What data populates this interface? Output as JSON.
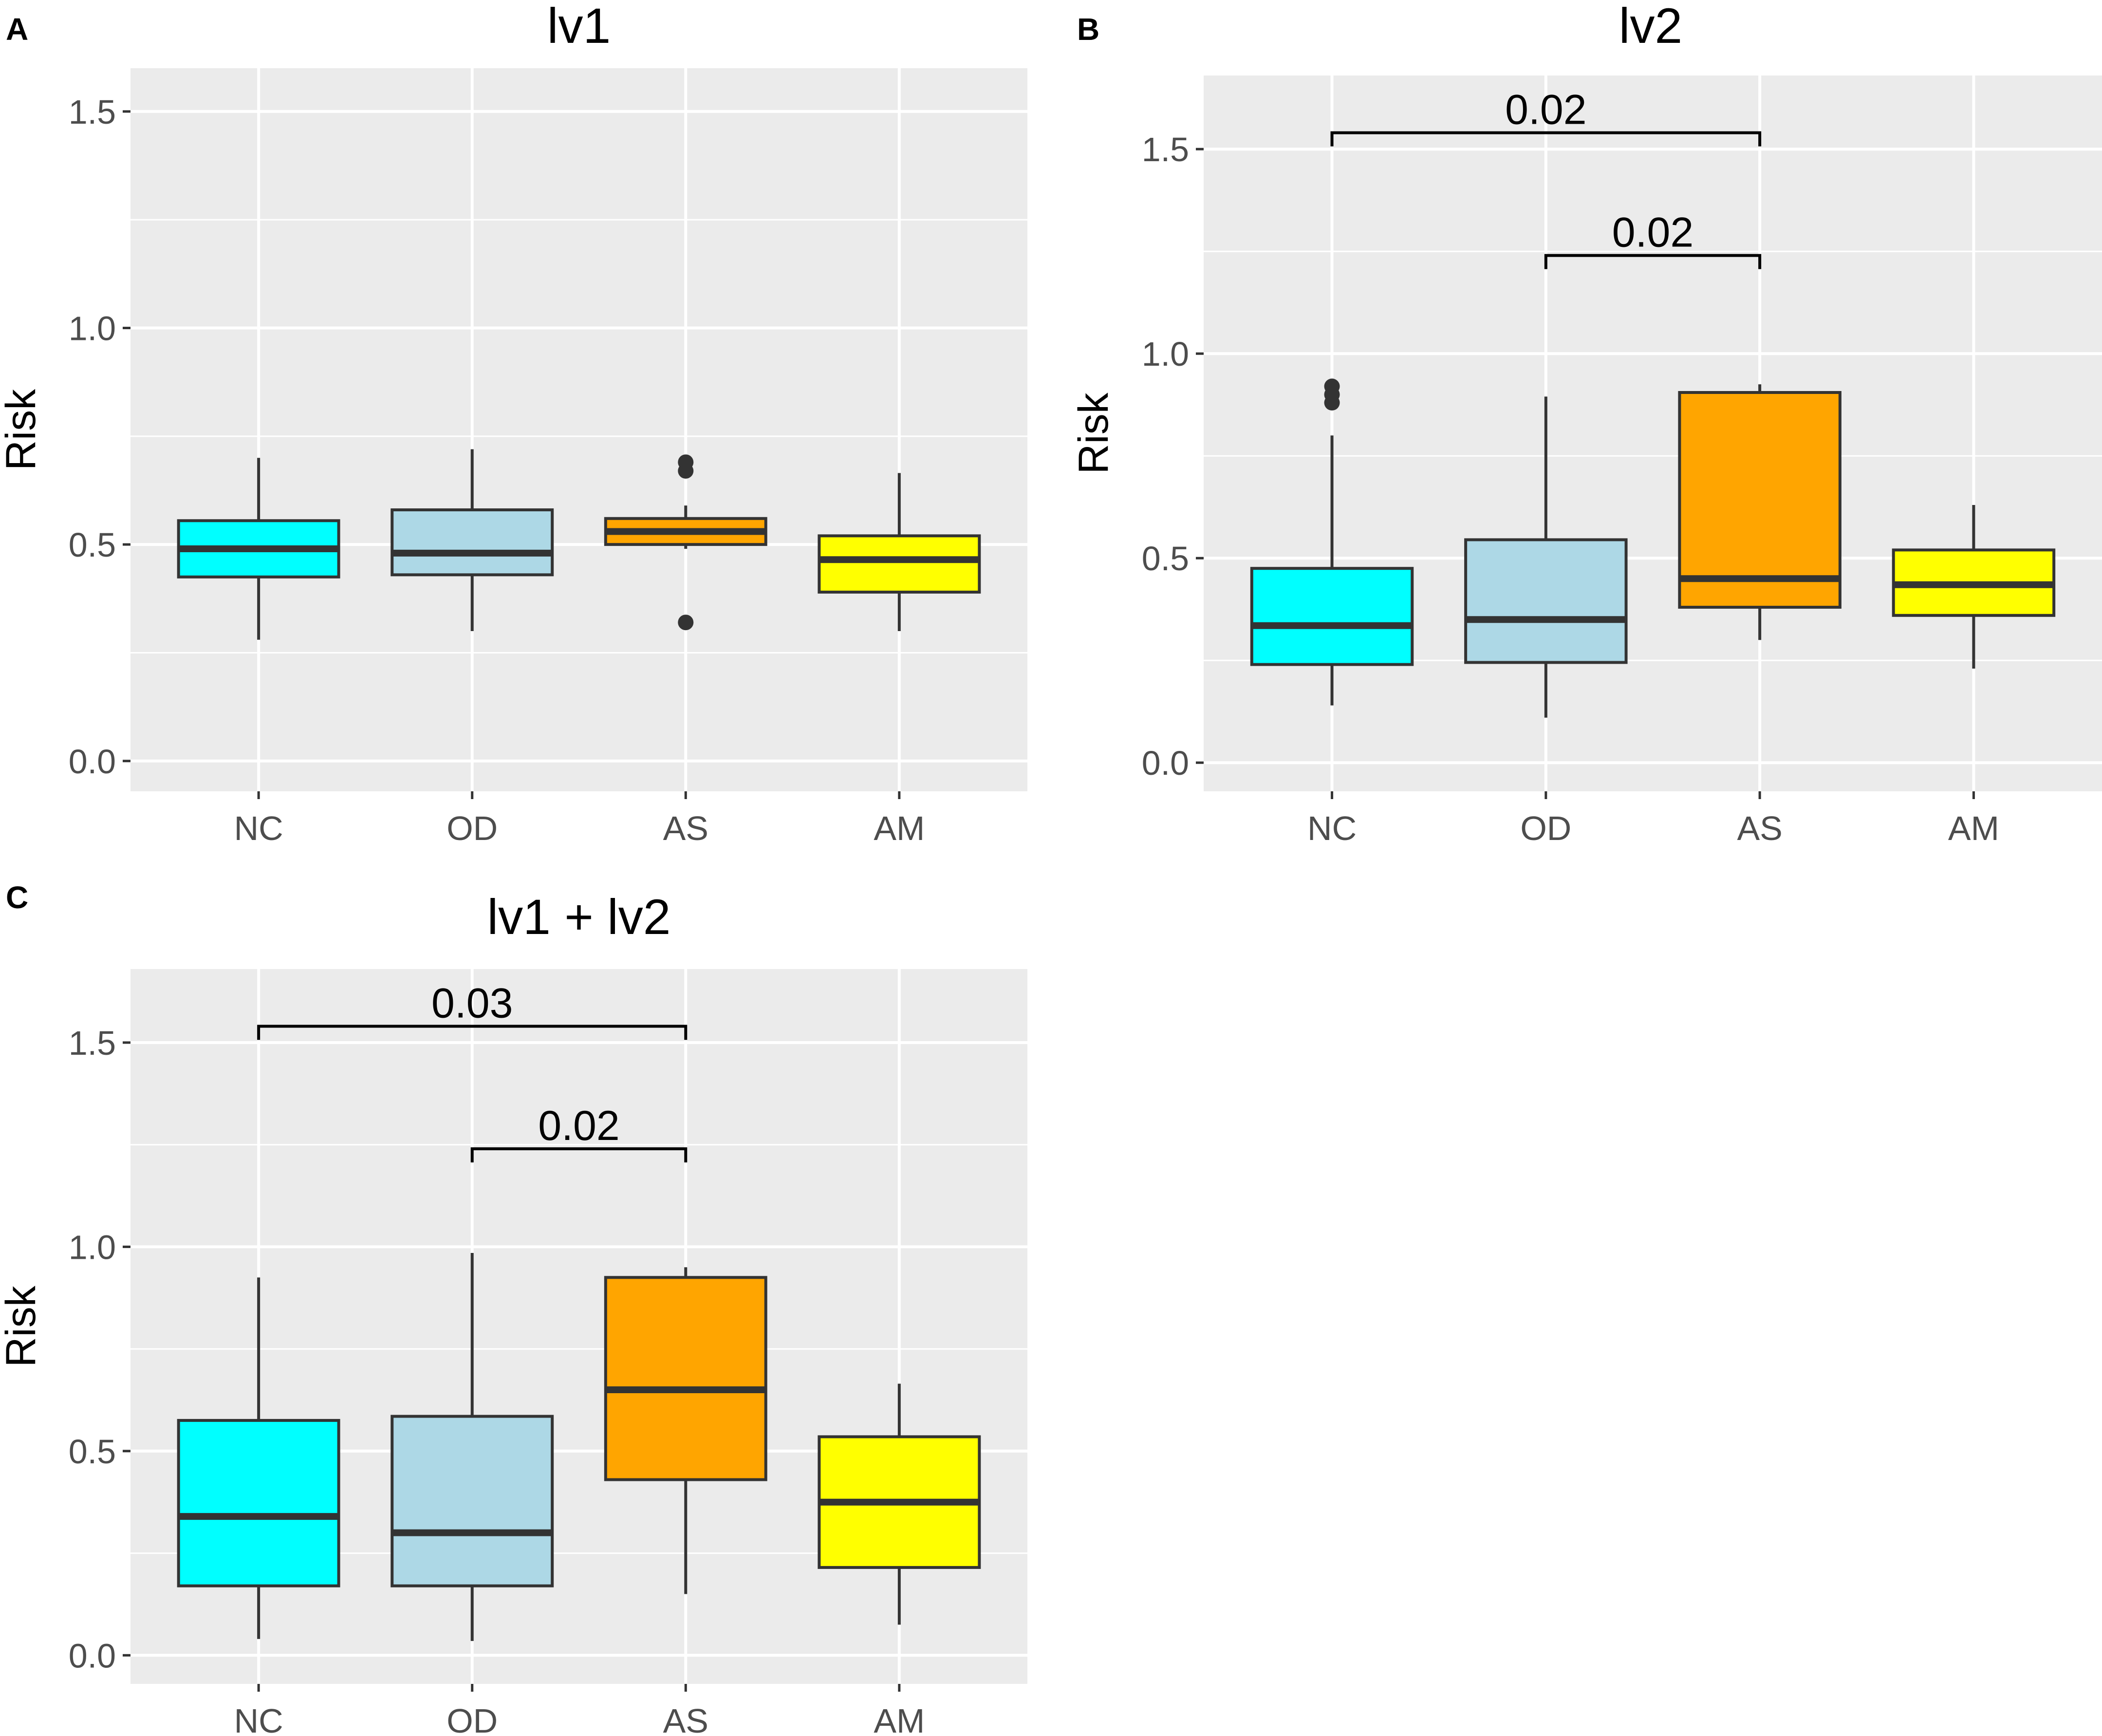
{
  "figure": "boxplot-panels",
  "colors": {
    "NC": "#00ffff",
    "OD": "#add8e6",
    "AS": "#ffa500",
    "AM": "#ffff00",
    "panel_background": "#ebebeb",
    "grid": "#ffffff",
    "outline": "#333333",
    "bracket": "#000000"
  },
  "chart_data": [
    {
      "panel": "A",
      "type": "boxplot",
      "title": "lv1",
      "xlabel": "",
      "ylabel": "Risk",
      "ylim": [
        -0.07,
        1.6
      ],
      "yticks": [
        0.0,
        0.5,
        1.0,
        1.5
      ],
      "ytick_labels": [
        "0.0",
        "0.5",
        "1.0",
        "1.5"
      ],
      "categories": [
        "NC",
        "OD",
        "AS",
        "AM"
      ],
      "boxes": [
        {
          "group": "NC",
          "whisker_low": 0.28,
          "q1": 0.425,
          "median": 0.49,
          "q3": 0.555,
          "whisker_high": 0.7,
          "outliers": []
        },
        {
          "group": "OD",
          "whisker_low": 0.3,
          "q1": 0.43,
          "median": 0.48,
          "q3": 0.58,
          "whisker_high": 0.72,
          "outliers": []
        },
        {
          "group": "AS",
          "whisker_low": 0.49,
          "q1": 0.5,
          "median": 0.53,
          "q3": 0.56,
          "whisker_high": 0.59,
          "outliers": [
            0.32,
            0.67,
            0.69
          ]
        },
        {
          "group": "AM",
          "whisker_low": 0.3,
          "q1": 0.39,
          "median": 0.465,
          "q3": 0.52,
          "whisker_high": 0.665,
          "outliers": []
        }
      ],
      "comparisons": []
    },
    {
      "panel": "B",
      "type": "boxplot",
      "title": "lv2",
      "xlabel": "",
      "ylabel": "Risk",
      "ylim": [
        -0.07,
        1.68
      ],
      "yticks": [
        0.0,
        0.5,
        1.0,
        1.5
      ],
      "ytick_labels": [
        "0.0",
        "0.5",
        "1.0",
        "1.5"
      ],
      "categories": [
        "NC",
        "OD",
        "AS",
        "AM"
      ],
      "boxes": [
        {
          "group": "NC",
          "whisker_low": 0.14,
          "q1": 0.24,
          "median": 0.335,
          "q3": 0.475,
          "whisker_high": 0.8,
          "outliers": [
            0.88,
            0.9,
            0.92
          ]
        },
        {
          "group": "OD",
          "whisker_low": 0.11,
          "q1": 0.245,
          "median": 0.35,
          "q3": 0.545,
          "whisker_high": 0.895,
          "outliers": []
        },
        {
          "group": "AS",
          "whisker_low": 0.3,
          "q1": 0.38,
          "median": 0.45,
          "q3": 0.905,
          "whisker_high": 0.925,
          "outliers": []
        },
        {
          "group": "AM",
          "whisker_low": 0.23,
          "q1": 0.36,
          "median": 0.435,
          "q3": 0.52,
          "whisker_high": 0.63,
          "outliers": []
        }
      ],
      "comparisons": [
        {
          "from": "NC",
          "to": "AS",
          "y": 1.54,
          "label": "0.02"
        },
        {
          "from": "OD",
          "to": "AS",
          "y": 1.24,
          "label": "0.02"
        }
      ]
    },
    {
      "panel": "C",
      "type": "boxplot",
      "title": "lv1 + lv2",
      "xlabel": "",
      "ylabel": "Risk",
      "ylim": [
        -0.07,
        1.68
      ],
      "yticks": [
        0.0,
        0.5,
        1.0,
        1.5
      ],
      "ytick_labels": [
        "0.0",
        "0.5",
        "1.0",
        "1.5"
      ],
      "categories": [
        "NC",
        "OD",
        "AS",
        "AM"
      ],
      "boxes": [
        {
          "group": "NC",
          "whisker_low": 0.04,
          "q1": 0.17,
          "median": 0.34,
          "q3": 0.575,
          "whisker_high": 0.925,
          "outliers": []
        },
        {
          "group": "OD",
          "whisker_low": 0.035,
          "q1": 0.17,
          "median": 0.3,
          "q3": 0.585,
          "whisker_high": 0.985,
          "outliers": []
        },
        {
          "group": "AS",
          "whisker_low": 0.15,
          "q1": 0.43,
          "median": 0.65,
          "q3": 0.925,
          "whisker_high": 0.95,
          "outliers": []
        },
        {
          "group": "AM",
          "whisker_low": 0.075,
          "q1": 0.215,
          "median": 0.375,
          "q3": 0.535,
          "whisker_high": 0.665,
          "outliers": []
        }
      ],
      "comparisons": [
        {
          "from": "NC",
          "to": "AS",
          "y": 1.54,
          "label": "0.03"
        },
        {
          "from": "OD",
          "to": "AS",
          "y": 1.24,
          "label": "0.02"
        }
      ]
    }
  ]
}
